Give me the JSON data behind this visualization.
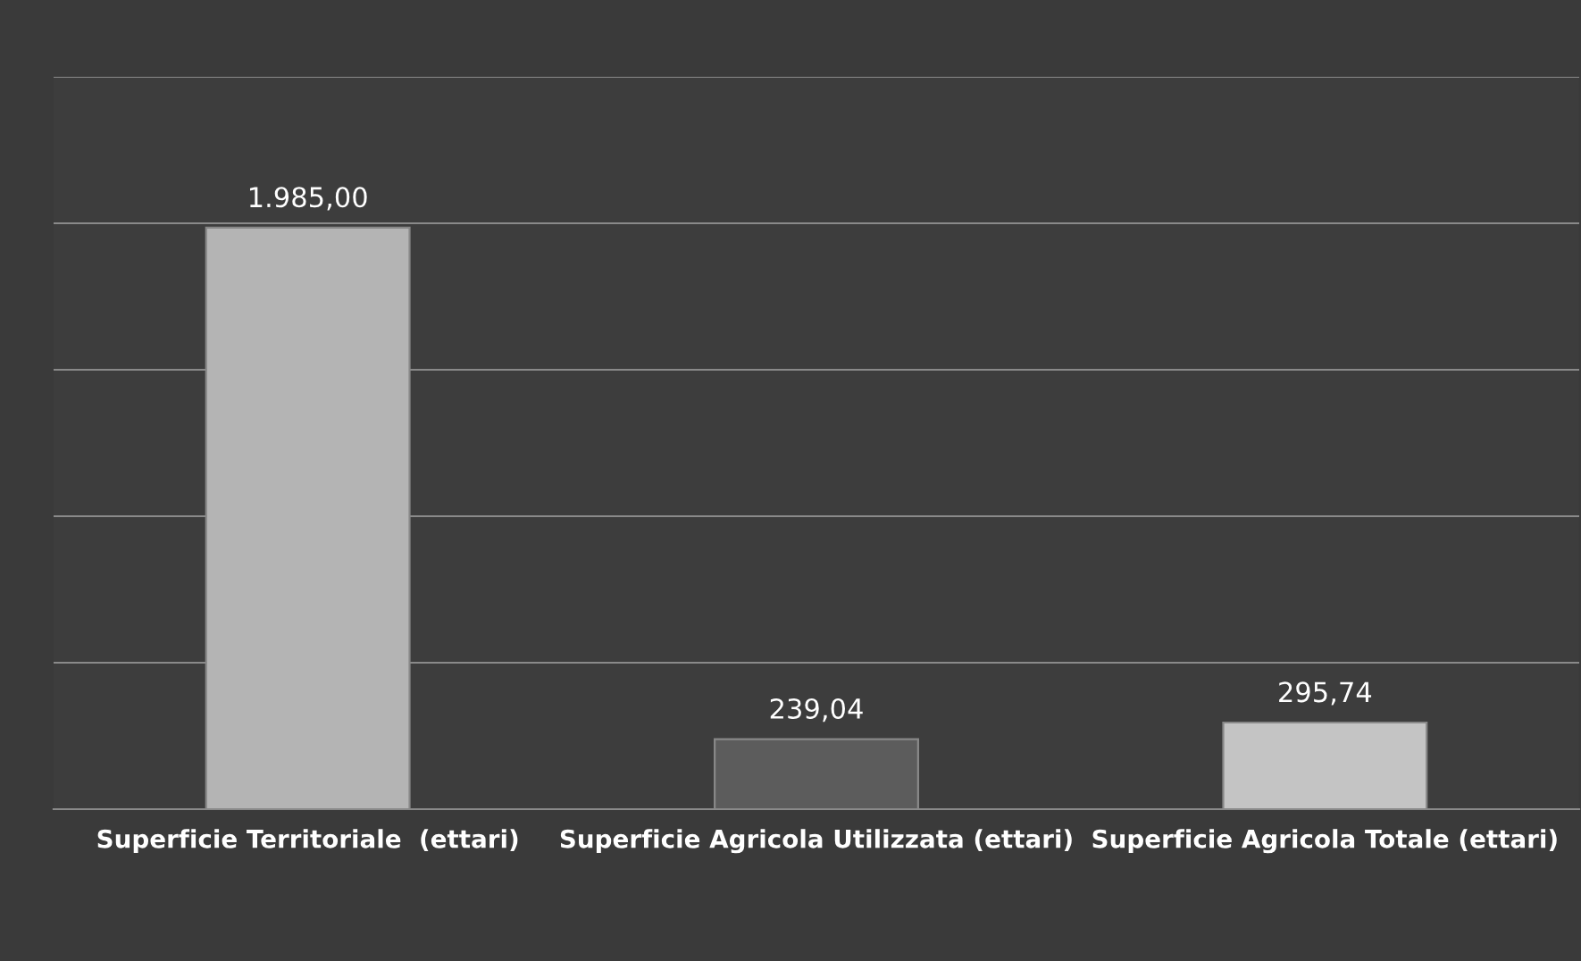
{
  "chart_data": {
    "type": "bar",
    "categories": [
      "Superficie Territoriale  (ettari)",
      "Superficie Agricola Utilizzata (ettari)",
      "Superficie Agricola Totale (ettari)"
    ],
    "values": [
      1985.0,
      239.04,
      295.74
    ],
    "colors": [
      "#b4b4b4",
      "#5c5c5c",
      "#c4c4c4"
    ],
    "value_labels": [
      "1.985,00",
      "239,04",
      "295,74"
    ],
    "ylim": [
      0,
      2500
    ],
    "yticks": [
      {
        "value": 0,
        "label": null
      },
      {
        "value": 500,
        "label": null
      },
      {
        "value": 1000,
        "label": null
      },
      {
        "value": 1500,
        "label": null
      },
      {
        "value": 2000,
        "label": null
      },
      {
        "value": 2500,
        "label": null
      }
    ],
    "tick_labels": "x",
    "grid": "y"
  }
}
